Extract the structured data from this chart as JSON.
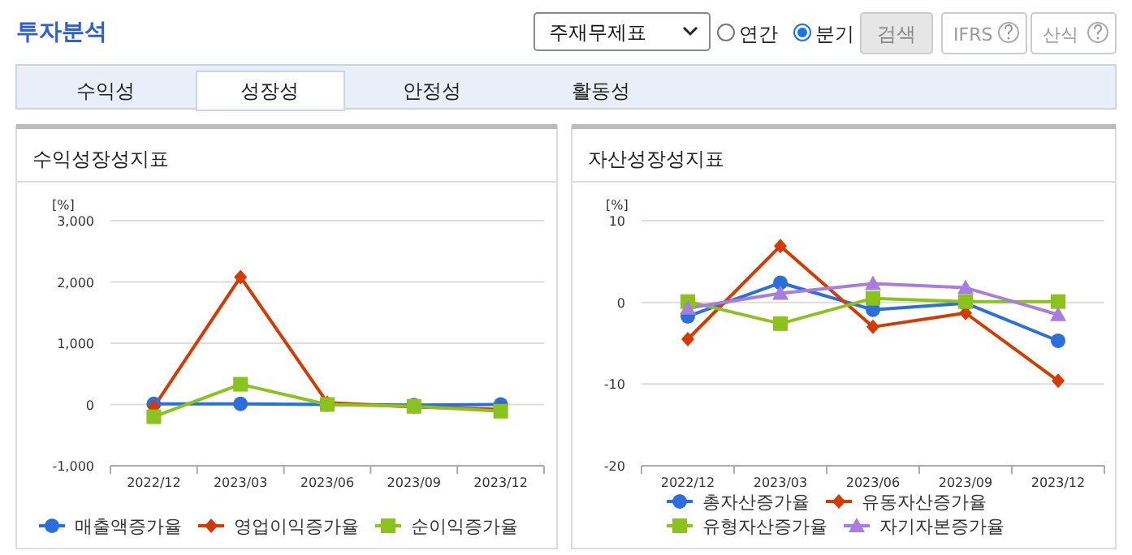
{
  "chart_data": [
    {
      "type": "other",
      "annotations": [
        "투자분석",
        "주재무제표",
        "연간",
        "분기",
        "검색",
        "IFRS",
        "산식",
        "수익성",
        "성장성",
        "안정성",
        "활동성"
      ]
    },
    {
      "type": "line",
      "title": "수익성장성지표",
      "ylabel": "[%]",
      "categories": [
        "2022/12",
        "2023/03",
        "2023/06",
        "2023/09",
        "2023/12"
      ],
      "ylim": [
        -1000,
        3000
      ],
      "yticks": [
        {
          "value": -1000,
          "label": "-1,000"
        },
        0,
        {
          "value": 1000,
          "label": "1,000"
        },
        {
          "value": 2000,
          "label": "2,000"
        },
        {
          "value": 3000,
          "label": "3,000"
        }
      ],
      "grid": "y",
      "legend": "bottom",
      "series": [
        {
          "name": "매출액증가율",
          "color": "#2a6fdb",
          "marker": "circle",
          "values": [
            10,
            10,
            0,
            -10,
            0
          ]
        },
        {
          "name": "영업이익증가율",
          "color": "#d63a00",
          "marker": "diamond",
          "values": [
            -40,
            2080,
            30,
            -40,
            -80
          ]
        },
        {
          "name": "순이익증가율",
          "color": "#8cc21e",
          "marker": "square",
          "values": [
            -200,
            330,
            0,
            -30,
            -110
          ]
        }
      ]
    },
    {
      "type": "line",
      "title": "자산성장성지표",
      "ylabel": "[%]",
      "categories": [
        "2022/12",
        "2023/03",
        "2023/06",
        "2023/09",
        "2023/12"
      ],
      "ylim": [
        -20,
        10
      ],
      "yticks": [
        -20,
        -10,
        0,
        10
      ],
      "grid": "y",
      "legend": "bottom",
      "series": [
        {
          "name": "총자산증가율",
          "color": "#2a6fdb",
          "marker": "circle",
          "values": [
            -1.7,
            2.4,
            -0.9,
            -0.1,
            -4.7
          ]
        },
        {
          "name": "유동자산증가율",
          "color": "#d63a00",
          "marker": "diamond",
          "values": [
            -4.5,
            6.9,
            -3.0,
            -1.3,
            -9.6
          ]
        },
        {
          "name": "유형자산증가율",
          "color": "#8cc21e",
          "marker": "square",
          "values": [
            0.1,
            -2.6,
            0.5,
            0.1,
            0.1
          ]
        },
        {
          "name": "자기자본증가율",
          "color": "#a97ce0",
          "marker": "triangle",
          "values": [
            -0.7,
            1.1,
            2.3,
            1.8,
            -1.5
          ]
        }
      ]
    }
  ]
}
